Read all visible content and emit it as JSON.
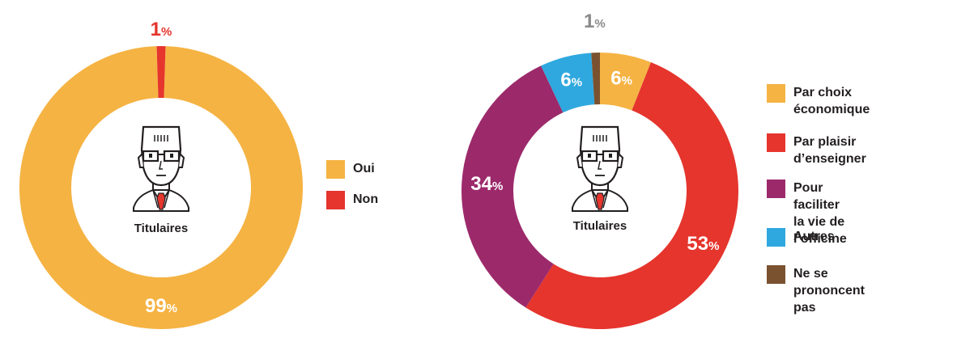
{
  "chart_data": [
    {
      "type": "pie",
      "center_label": "Titulaires",
      "categories": [
        "Oui",
        "Non"
      ],
      "values": [
        99,
        1
      ],
      "colors": [
        "#F5B343",
        "#E5352D"
      ],
      "labels": [
        {
          "value": "99",
          "unit": "%",
          "color": "#ffffff"
        },
        {
          "value": "1",
          "unit": "%",
          "color": "#E5352D"
        }
      ],
      "legend_position": "right"
    },
    {
      "type": "pie",
      "center_label": "Titulaires",
      "categories": [
        "Par choix\néconomique",
        "Par plaisir\nd’enseigner",
        "Pour faciliter\nla vie de l’officine",
        "Autres",
        "Ne se prononcent pas"
      ],
      "values": [
        6,
        53,
        34,
        6,
        1
      ],
      "colors": [
        "#F5B343",
        "#E5352D",
        "#9C2A6B",
        "#2FA8DF",
        "#7A5230"
      ],
      "labels": [
        {
          "value": "6",
          "unit": "%",
          "color": "#ffffff"
        },
        {
          "value": "53",
          "unit": "%",
          "color": "#ffffff"
        },
        {
          "value": "34",
          "unit": "%",
          "color": "#ffffff"
        },
        {
          "value": "6",
          "unit": "%",
          "color": "#ffffff"
        },
        {
          "value": "1",
          "unit": "%",
          "color": "#8A8A8A"
        }
      ],
      "legend_position": "right"
    }
  ]
}
